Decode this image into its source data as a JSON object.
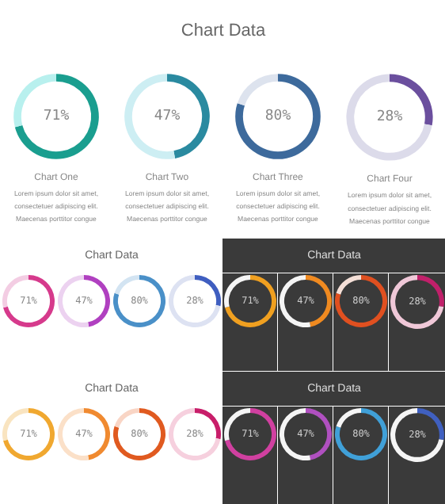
{
  "chart_data": [
    {
      "type": "other",
      "title": "Chart Data"
    },
    {
      "type": "donut",
      "title": "Chart One",
      "categories": [
        null,
        null
      ],
      "values": [
        71,
        29
      ],
      "colors": [
        "#1a9e8f",
        "#b8f0ee"
      ],
      "value_labels": [
        "71%",
        null
      ],
      "annotations": [
        "Lorem ipsum dolor sit amet,",
        "consectetuer adipiscing elit.",
        "Maecenas porttitor congue"
      ]
    },
    {
      "type": "donut",
      "title": "Chart Two",
      "categories": [
        null,
        null
      ],
      "values": [
        47,
        53
      ],
      "colors": [
        "#2a8aa0",
        "#cdeef3"
      ],
      "value_labels": [
        "47%",
        null
      ],
      "annotations": [
        "Lorem ipsum dolor sit amet,",
        "consectetuer adipiscing elit.",
        "Maecenas porttitor congue"
      ]
    },
    {
      "type": "donut",
      "title": "Chart Three",
      "categories": [
        null,
        null
      ],
      "values": [
        80,
        20
      ],
      "colors": [
        "#3d6a9c",
        "#dde3ee"
      ],
      "value_labels": [
        "80%",
        null
      ],
      "annotations": [
        "Lorem ipsum dolor sit amet,",
        "consectetuer adipiscing elit.",
        "Maecenas porttitor congue"
      ]
    },
    {
      "type": "donut",
      "title": "Chart Four",
      "categories": [
        null,
        null
      ],
      "values": [
        28,
        72
      ],
      "colors": [
        "#6b4f9e",
        "#dcdbea"
      ],
      "value_labels": [
        "28%",
        null
      ],
      "annotations": [
        "Lorem ipsum dolor sit amet,",
        "consectetuer adipiscing elit.",
        "Maecenas porttitor congue"
      ]
    },
    {
      "type": "other",
      "title": "Chart Data"
    },
    {
      "type": "donut",
      "categories": [
        null,
        null
      ],
      "values": [
        71,
        29
      ],
      "colors": [
        "#d63a8c",
        "#f3cde3"
      ],
      "value_labels": [
        "71%",
        null
      ]
    },
    {
      "type": "donut",
      "categories": [
        null,
        null
      ],
      "values": [
        47,
        53
      ],
      "colors": [
        "#b040c0",
        "#ecd2f0"
      ],
      "value_labels": [
        "47%",
        null
      ]
    },
    {
      "type": "donut",
      "categories": [
        null,
        null
      ],
      "values": [
        80,
        20
      ],
      "colors": [
        "#4a90c8",
        "#d3e4f2"
      ],
      "value_labels": [
        "80%",
        null
      ]
    },
    {
      "type": "donut",
      "categories": [
        null,
        null
      ],
      "values": [
        28,
        72
      ],
      "colors": [
        "#3f5ec0",
        "#dde2f2"
      ],
      "value_labels": [
        "28%",
        null
      ]
    },
    {
      "type": "other",
      "title": "Chart Data"
    },
    {
      "type": "donut",
      "categories": [
        null,
        null
      ],
      "values": [
        71,
        29
      ],
      "colors": [
        "#f0a020",
        "#f5f5f5"
      ],
      "value_labels": [
        "71%",
        null
      ]
    },
    {
      "type": "donut",
      "categories": [
        null,
        null
      ],
      "values": [
        47,
        53
      ],
      "colors": [
        "#f08a20",
        "#f5f5f5"
      ],
      "value_labels": [
        "47%",
        null
      ]
    },
    {
      "type": "donut",
      "categories": [
        null,
        null
      ],
      "values": [
        80,
        20
      ],
      "colors": [
        "#e05020",
        "#f5e0d8"
      ],
      "value_labels": [
        "80%",
        null
      ]
    },
    {
      "type": "donut",
      "categories": [
        null,
        null
      ],
      "values": [
        28,
        72
      ],
      "colors": [
        "#c0206a",
        "#f0c8d8"
      ],
      "value_labels": [
        "28%",
        null
      ]
    },
    {
      "type": "other",
      "title": "Chart Data"
    },
    {
      "type": "donut",
      "categories": [
        null,
        null
      ],
      "values": [
        71,
        29
      ],
      "colors": [
        "#f0a830",
        "#f9e4c0"
      ],
      "value_labels": [
        "71%",
        null
      ]
    },
    {
      "type": "donut",
      "categories": [
        null,
        null
      ],
      "values": [
        47,
        53
      ],
      "colors": [
        "#f08a30",
        "#fbe0c8"
      ],
      "value_labels": [
        "47%",
        null
      ]
    },
    {
      "type": "donut",
      "categories": [
        null,
        null
      ],
      "values": [
        80,
        20
      ],
      "colors": [
        "#e05a20",
        "#f9d5c5"
      ],
      "value_labels": [
        "80%",
        null
      ]
    },
    {
      "type": "donut",
      "categories": [
        null,
        null
      ],
      "values": [
        28,
        72
      ],
      "colors": [
        "#c81e6a",
        "#f6d0de"
      ],
      "value_labels": [
        "28%",
        null
      ]
    },
    {
      "type": "other",
      "title": "Chart Data"
    },
    {
      "type": "donut",
      "categories": [
        null,
        null
      ],
      "values": [
        71,
        29
      ],
      "colors": [
        "#d040a0",
        "#f5f5f5"
      ],
      "value_labels": [
        "71%",
        null
      ]
    },
    {
      "type": "donut",
      "categories": [
        null,
        null
      ],
      "values": [
        47,
        53
      ],
      "colors": [
        "#b050c0",
        "#f5f5f5"
      ],
      "value_labels": [
        "47%",
        null
      ]
    },
    {
      "type": "donut",
      "categories": [
        null,
        null
      ],
      "values": [
        80,
        20
      ],
      "colors": [
        "#40a0d8",
        "#f5f5f5"
      ],
      "value_labels": [
        "80%",
        null
      ]
    },
    {
      "type": "donut",
      "categories": [
        null,
        null
      ],
      "values": [
        28,
        72
      ],
      "colors": [
        "#4060c0",
        "#f5f5f5"
      ],
      "value_labels": [
        "28%",
        null
      ]
    }
  ]
}
